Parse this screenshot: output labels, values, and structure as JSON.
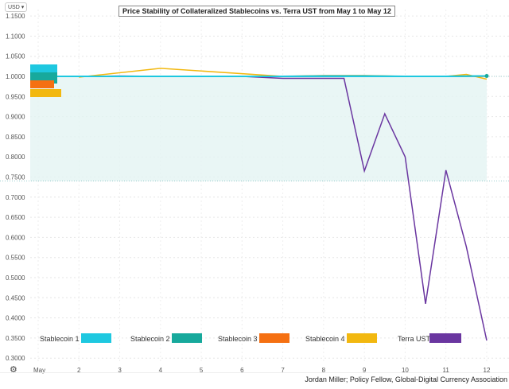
{
  "currency_selector": "USD ▾",
  "credit": "Jordan Miller; Policy Fellow, Global-Digital Currency Association",
  "chart_data": {
    "type": "line",
    "title": "Price Stability of Collateralized Stablecoins vs. Terra UST from May 1 to May 12",
    "xlabel": "",
    "ylabel": "USD",
    "ylim": [
      0.3,
      1.15
    ],
    "yticks": [
      "1.1500",
      "1.1000",
      "1.0500",
      "1.0000",
      "0.9500",
      "0.9000",
      "0.8500",
      "0.8000",
      "0.7500",
      "0.7000",
      "0.6500",
      "0.6000",
      "0.5500",
      "0.5000",
      "0.4500",
      "0.4000",
      "0.3500",
      "0.3000"
    ],
    "ytick_values": [
      1.15,
      1.1,
      1.05,
      1.0,
      0.95,
      0.9,
      0.85,
      0.8,
      0.75,
      0.7,
      0.65,
      0.6,
      0.55,
      0.5,
      0.45,
      0.4,
      0.35,
      0.3
    ],
    "xticks": [
      "May",
      "2",
      "3",
      "4",
      "5",
      "6",
      "7",
      "8",
      "9",
      "10",
      "11",
      "12"
    ],
    "xlim": [
      1,
      12
    ],
    "grid": true,
    "shaded_band": [
      0.74,
      1.0
    ],
    "series": [
      {
        "name": "Stablecoin 1",
        "color": "#1ec8e0",
        "x": [
          1,
          2,
          3,
          4,
          5,
          6,
          7,
          8,
          9,
          10,
          11,
          12
        ],
        "values": [
          1.0,
          1.0,
          1.0,
          1.0,
          1.0,
          1.0,
          1.0,
          1.0,
          1.0,
          1.0,
          1.0,
          1.001
        ]
      },
      {
        "name": "Stablecoin 2",
        "color": "#17a99c",
        "x": [
          1,
          2,
          3,
          4,
          5,
          6,
          7,
          8,
          9,
          10,
          11,
          12
        ],
        "values": [
          1.0,
          1.0,
          1.0,
          1.0,
          1.0,
          1.0,
          1.0,
          1.001,
          1.001,
          1.0,
          1.0,
          1.001
        ]
      },
      {
        "name": "Stablecoin 3",
        "color": "#f57012",
        "x": [
          1,
          2,
          3,
          4,
          5,
          6,
          7,
          8,
          9,
          10,
          11,
          12
        ],
        "values": [
          1.0,
          1.0,
          1.0,
          1.0,
          1.0,
          1.0,
          1.0,
          1.0,
          1.0,
          1.0,
          1.0,
          1.0
        ]
      },
      {
        "name": "Stablecoin 4",
        "color": "#f2b810",
        "x": [
          2,
          4,
          7,
          8,
          9,
          10,
          11,
          11.5,
          12
        ],
        "values": [
          0.998,
          1.02,
          1.0,
          1.002,
          1.002,
          1.0,
          1.0,
          1.005,
          0.993
        ]
      },
      {
        "name": "Terra UST",
        "color": "#6a36a0",
        "x": [
          1,
          2,
          3,
          4,
          5,
          6,
          7,
          8,
          8.5,
          9,
          9.5,
          10,
          10.5,
          11,
          11.5,
          12
        ],
        "values": [
          1.0,
          1.0,
          1.001,
          1.0,
          1.0,
          1.0,
          0.995,
          0.995,
          0.995,
          0.765,
          0.907,
          0.8,
          0.435,
          0.767,
          0.577,
          0.344
        ]
      }
    ],
    "legend": [
      "Stablecoin 1",
      "Stablecoin 2",
      "Stablecoin 3",
      "Stablecoin 4",
      "Terra UST"
    ],
    "legend_placement": "bottom"
  }
}
